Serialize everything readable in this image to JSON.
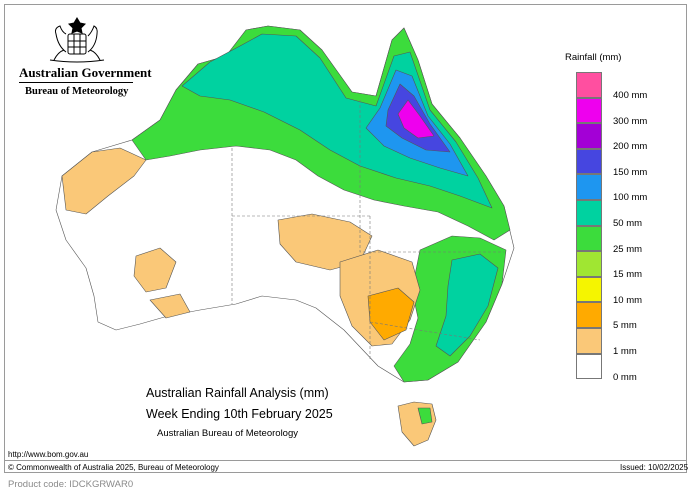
{
  "header": {
    "government": "Australian Government",
    "bureau": "Bureau of Meteorology"
  },
  "map": {
    "title": "Australian Rainfall Analysis (mm)",
    "subtitle": "Week Ending 10th February 2025",
    "agency": "Australian Bureau of Meteorology"
  },
  "legend": {
    "title": "Rainfall (mm)",
    "labels": [
      "400 mm",
      "300 mm",
      "200 mm",
      "150 mm",
      "100 mm",
      "50 mm",
      "25 mm",
      "15 mm",
      "10 mm",
      "5 mm",
      "1 mm",
      "0 mm"
    ],
    "colors": [
      "#ff4fa0",
      "#ee00ee",
      "#a300d6",
      "#4646e0",
      "#1e96f0",
      "#00d2a0",
      "#3cdc3c",
      "#a0e632",
      "#f5f500",
      "#ffaa00",
      "#fac878",
      "#ffffff"
    ]
  },
  "footer": {
    "url": "http://www.bom.gov.au",
    "copyright": "© Commonwealth of Australia 2025, Bureau of Meteorology",
    "issued": "Issued: 10/02/2025",
    "product_code": "Product code: IDCKGRWAR0"
  }
}
